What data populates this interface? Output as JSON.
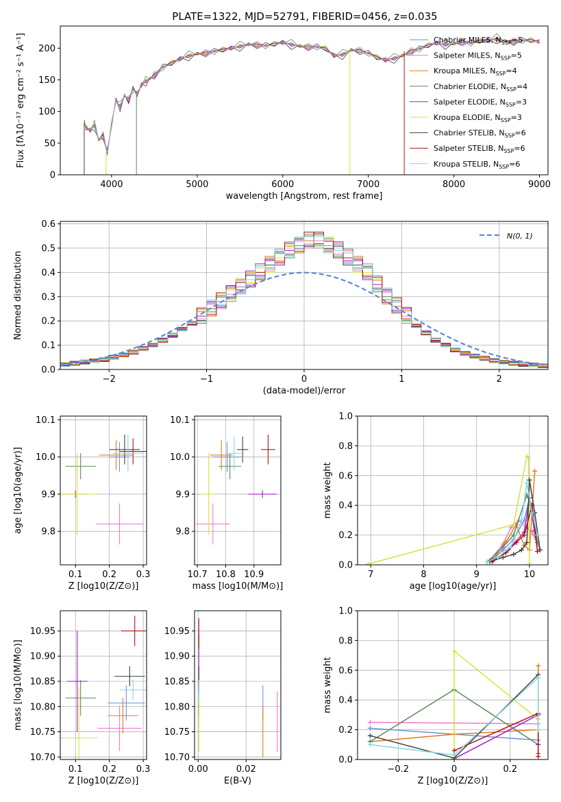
{
  "title": "PLATE=1322, MJD=52791, FIBERID=0456, z=0.035",
  "models": [
    {
      "name": "Chabrier MILES",
      "n": "5",
      "color": "#6f8fd8"
    },
    {
      "name": "Salpeter MILES",
      "n": "5",
      "color": "#f07ac8"
    },
    {
      "name": "Kroupa MILES",
      "n": "4",
      "color": "#e07b1a"
    },
    {
      "name": "Chabrier ELODIE",
      "n": "4",
      "color": "#5a8a5a"
    },
    {
      "name": "Salpeter ELODIE",
      "n": "3",
      "color": "#a020c8"
    },
    {
      "name": "Kroupa ELODIE",
      "n": "3",
      "color": "#d8e040"
    },
    {
      "name": "Chabrier STELIB",
      "n": "6",
      "color": "#404040"
    },
    {
      "name": "Salpeter STELIB",
      "n": "6",
      "color": "#b01010"
    },
    {
      "name": "Kroupa STELIB",
      "n": "6",
      "color": "#7fd8e0"
    }
  ],
  "nssp_label": "N",
  "nssp_sub": "SSP",
  "chart_data": [
    {
      "id": "spectrum",
      "type": "line",
      "xlabel": "wavelength [Angstrom, rest frame]",
      "ylabel": "Flux [fλ10⁻¹⁷ erg cm⁻² s⁻¹ A⁻¹]",
      "xlim": [
        3400,
        9100
      ],
      "ylim": [
        0,
        235
      ],
      "xticks": [
        4000,
        5000,
        6000,
        7000,
        8000,
        9000
      ],
      "yticks": [
        0,
        50,
        100,
        150,
        200
      ],
      "x": [
        3680,
        3700,
        3750,
        3800,
        3850,
        3900,
        3950,
        4000,
        4050,
        4100,
        4150,
        4200,
        4250,
        4300,
        4350,
        4400,
        4450,
        4500,
        4600,
        4700,
        4800,
        4900,
        5000,
        5100,
        5200,
        5300,
        5400,
        5500,
        5600,
        5700,
        5800,
        5900,
        6000,
        6100,
        6200,
        6300,
        6400,
        6500,
        6600,
        6700,
        6800,
        6900,
        7000,
        7100,
        7200,
        7300,
        7400,
        7500,
        7600,
        7700,
        7800,
        7900,
        8000,
        8100,
        8200,
        8300,
        8400,
        8500,
        8600,
        8700,
        8800,
        8900,
        9000
      ],
      "y": [
        82,
        75,
        70,
        78,
        55,
        62,
        35,
        80,
        118,
        108,
        125,
        118,
        135,
        128,
        142,
        148,
        152,
        157,
        170,
        177,
        183,
        188,
        191,
        192,
        195,
        198,
        200,
        203,
        206,
        205,
        204,
        207,
        209,
        206,
        203,
        202,
        202,
        200,
        188,
        190,
        197,
        196,
        192,
        186,
        181,
        184,
        188,
        195,
        199,
        205,
        208,
        206,
        207,
        210,
        208,
        212,
        212,
        215,
        211,
        210,
        212,
        213,
        210
      ],
      "dips": [
        [
          3680,
          0
        ],
        [
          3935,
          0
        ],
        [
          4290,
          0
        ],
        [
          6785,
          0
        ],
        [
          7420,
          0
        ]
      ]
    },
    {
      "id": "residuals",
      "type": "area",
      "xlabel": "(data-model)/error",
      "ylabel": "Normed distribution",
      "xlim": [
        -2.5,
        2.5
      ],
      "ylim": [
        0,
        0.61
      ],
      "xticks": [
        -2,
        -1,
        0,
        1,
        2
      ],
      "yticks": [
        0.0,
        0.1,
        0.2,
        0.3,
        0.4,
        0.5,
        0.6
      ],
      "grid": true,
      "legend": "N(0, 1)",
      "bins_from": -2.5,
      "bin_width": 0.1,
      "hist_peak": [
        0.02,
        0.025,
        0.03,
        0.035,
        0.04,
        0.05,
        0.06,
        0.07,
        0.085,
        0.1,
        0.12,
        0.14,
        0.165,
        0.19,
        0.22,
        0.25,
        0.28,
        0.31,
        0.34,
        0.37,
        0.4,
        0.43,
        0.46,
        0.49,
        0.51,
        0.53,
        0.53,
        0.51,
        0.49,
        0.46,
        0.43,
        0.4,
        0.35,
        0.3,
        0.26,
        0.22,
        0.18,
        0.15,
        0.12,
        0.1,
        0.08,
        0.065,
        0.055,
        0.045,
        0.035,
        0.03,
        0.025,
        0.02,
        0.018,
        0.015
      ]
    },
    {
      "id": "age-z",
      "type": "scatter",
      "xlabel": "Z [log10(Z/Z⊙)]",
      "ylabel": "age  [log10(age/yr)]",
      "xlim": [
        0.055,
        0.31
      ],
      "ylim": [
        9.71,
        10.11
      ],
      "xticks": [
        0.1,
        0.2,
        0.3
      ],
      "yticks": [
        9.8,
        9.9,
        10.0,
        10.1
      ],
      "grid": true,
      "points": [
        {
          "x": 0.23,
          "y": 10.0,
          "xe": 0.03,
          "ye": 0.04
        },
        {
          "x": 0.23,
          "y": 9.82,
          "xe": 0.07,
          "ye": 0.055
        },
        {
          "x": 0.22,
          "y": 10.005,
          "xe": 0.05,
          "ye": 0.04
        },
        {
          "x": 0.115,
          "y": 9.975,
          "xe": 0.045,
          "ye": 0.035
        },
        {
          "x": 0.1,
          "y": 9.9,
          "xe": 0.04,
          "ye": 0.01
        },
        {
          "x": 0.105,
          "y": 9.9,
          "xe": 0.06,
          "ye": 0.11
        },
        {
          "x": 0.245,
          "y": 10.02,
          "xe": 0.045,
          "ye": 0.04
        },
        {
          "x": 0.27,
          "y": 10.015,
          "xe": 0.04,
          "ye": 0.035
        },
        {
          "x": 0.255,
          "y": 10.01,
          "xe": 0.045,
          "ye": 0.05
        }
      ]
    },
    {
      "id": "age-mass",
      "type": "scatter",
      "xlabel": "mass [log10(M/M⊙)]",
      "ylabel": "",
      "xlim": [
        10.69,
        10.995
      ],
      "ylim": [
        9.71,
        10.11
      ],
      "xticks": [
        10.7,
        10.8,
        10.9
      ],
      "yticks": [
        9.8,
        9.9,
        10.0,
        10.1
      ],
      "grid": true,
      "points": [
        {
          "x": 10.805,
          "y": 10.0,
          "xe": 0.05,
          "ye": 0.04
        },
        {
          "x": 10.755,
          "y": 9.82,
          "xe": 0.06,
          "ye": 0.055
        },
        {
          "x": 10.785,
          "y": 10.005,
          "xe": 0.04,
          "ye": 0.04
        },
        {
          "x": 10.815,
          "y": 9.975,
          "xe": 0.04,
          "ye": 0.035
        },
        {
          "x": 10.93,
          "y": 9.9,
          "xe": 0.05,
          "ye": 0.01
        },
        {
          "x": 10.74,
          "y": 9.9,
          "xe": 0.02,
          "ye": 0.11
        },
        {
          "x": 10.86,
          "y": 10.02,
          "xe": 0.02,
          "ye": 0.035
        },
        {
          "x": 10.95,
          "y": 10.02,
          "xe": 0.025,
          "ye": 0.04
        },
        {
          "x": 10.83,
          "y": 10.01,
          "xe": 0.025,
          "ye": 0.045
        }
      ]
    },
    {
      "id": "weight-age",
      "type": "line",
      "xlabel": "age  [log10(age/yr)]",
      "ylabel": "mass weight",
      "xlim": [
        6.75,
        10.35
      ],
      "ylim": [
        0,
        1.0
      ],
      "xticks": [
        7,
        8,
        9,
        10
      ],
      "yticks": [
        0.0,
        0.2,
        0.4,
        0.6,
        0.8,
        1.0
      ],
      "grid": true,
      "series": [
        {
          "x": [
            9.2,
            9.35,
            9.5,
            9.7,
            9.9,
            10.0,
            10.1,
            10.2
          ],
          "y": [
            0.02,
            0.05,
            0.1,
            0.17,
            0.3,
            0.45,
            0.2,
            0.1
          ]
        },
        {
          "x": [
            9.25,
            9.5,
            9.65,
            9.8,
            9.95,
            10.05,
            10.2
          ],
          "y": [
            0.03,
            0.14,
            0.25,
            0.3,
            0.25,
            0.22,
            0.1
          ]
        },
        {
          "x": [
            9.3,
            9.55,
            9.75,
            9.9,
            10.0,
            10.1
          ],
          "y": [
            0.03,
            0.15,
            0.27,
            0.13,
            0.1,
            0.63
          ]
        },
        {
          "x": [
            9.2,
            9.5,
            9.7,
            9.95,
            10.05,
            10.15
          ],
          "y": [
            0.02,
            0.12,
            0.2,
            0.47,
            0.4,
            0.15
          ]
        },
        {
          "x": [
            9.3,
            9.6,
            9.9,
            10.0,
            10.1
          ],
          "y": [
            0.02,
            0.1,
            0.22,
            0.45,
            0.23
          ]
        },
        {
          "x": [
            6.95,
            9.7,
            9.95,
            9.98,
            10.0
          ],
          "y": [
            0.005,
            0.27,
            0.73,
            0.72,
            0.01
          ]
        },
        {
          "x": [
            9.25,
            9.5,
            9.7,
            9.85,
            9.95,
            10.0,
            10.1,
            10.2
          ],
          "y": [
            0.02,
            0.05,
            0.07,
            0.1,
            0.15,
            0.57,
            0.35,
            0.1
          ]
        },
        {
          "x": [
            9.3,
            9.55,
            9.75,
            9.9,
            10.05,
            10.15
          ],
          "y": [
            0.03,
            0.08,
            0.15,
            0.2,
            0.4,
            0.09
          ]
        },
        {
          "x": [
            9.2,
            9.4,
            9.65,
            9.85,
            9.95,
            10.05,
            10.15
          ],
          "y": [
            0.02,
            0.05,
            0.12,
            0.3,
            0.55,
            0.35,
            0.2
          ]
        }
      ]
    },
    {
      "id": "mass-z",
      "type": "scatter",
      "xlabel": "Z [log10(Z/Z⊙)]",
      "ylabel": "mass [log10(M/M⊙)]",
      "xlim": [
        0.055,
        0.31
      ],
      "ylim": [
        10.695,
        10.99
      ],
      "xticks": [
        0.1,
        0.2,
        0.3
      ],
      "yticks": [
        10.7,
        10.75,
        10.8,
        10.85,
        10.9,
        10.95
      ],
      "grid": true,
      "points": [
        {
          "x": 0.25,
          "y": 10.807,
          "xe": 0.055,
          "ye": 0.035
        },
        {
          "x": 0.23,
          "y": 10.757,
          "xe": 0.065,
          "ye": 0.045
        },
        {
          "x": 0.24,
          "y": 10.782,
          "xe": 0.045,
          "ye": 0.035
        },
        {
          "x": 0.115,
          "y": 10.817,
          "xe": 0.045,
          "ye": 0.035
        },
        {
          "x": 0.105,
          "y": 10.85,
          "xe": 0.03,
          "ye": 0.1
        },
        {
          "x": 0.11,
          "y": 10.738,
          "xe": 0.055,
          "ye": 0.1
        },
        {
          "x": 0.26,
          "y": 10.86,
          "xe": 0.045,
          "ye": 0.02
        },
        {
          "x": 0.275,
          "y": 10.95,
          "xe": 0.04,
          "ye": 0.03
        },
        {
          "x": 0.27,
          "y": 10.833,
          "xe": 0.04,
          "ye": 0.02
        }
      ]
    },
    {
      "id": "mass-ebv",
      "type": "scatter",
      "xlabel": "E(B-V)",
      "ylabel": "",
      "xlim": [
        -0.0015,
        0.0345
      ],
      "ylim": [
        10.695,
        10.99
      ],
      "xticks": [
        0.0,
        0.02
      ],
      "yticks": [
        10.7,
        10.75,
        10.8,
        10.85,
        10.9,
        10.95
      ],
      "grid": true,
      "points": [
        {
          "x": 0.027,
          "y": 10.807,
          "xe": 0.0,
          "ye": 0.035
        },
        {
          "x": 0.033,
          "y": 10.77,
          "xe": 0.0,
          "ye": 0.06
        },
        {
          "x": 0.027,
          "y": 10.75,
          "xe": 0.0,
          "ye": 0.05
        },
        {
          "x": 0.0003,
          "y": 10.817,
          "xe": 0.0,
          "ye": 0.035
        },
        {
          "x": 0.0003,
          "y": 10.885,
          "xe": 0.0,
          "ye": 0.06
        },
        {
          "x": 0.0003,
          "y": 10.77,
          "xe": 0.0,
          "ye": 0.06
        },
        {
          "x": 0.0003,
          "y": 10.86,
          "xe": 0.0,
          "ye": 0.02
        },
        {
          "x": 0.0003,
          "y": 10.945,
          "xe": 0.0,
          "ye": 0.03
        },
        {
          "x": 0.0003,
          "y": 10.833,
          "xe": 0.0,
          "ye": 0.02
        }
      ]
    },
    {
      "id": "weight-z",
      "type": "line",
      "xlabel": "Z [log10(Z/Z⊙)]",
      "ylabel": "mass weight",
      "xlim": [
        -0.345,
        0.335
      ],
      "ylim": [
        0,
        1.0
      ],
      "xticks": [
        -0.2,
        0.0,
        0.2
      ],
      "yticks": [
        0.0,
        0.2,
        0.4,
        0.6,
        0.8,
        1.0
      ],
      "grid": true,
      "series": [
        {
          "x": [
            -0.3,
            0.0,
            0.3
          ],
          "y": [
            0.21,
            0.17,
            0.13
          ]
        },
        {
          "x": [
            -0.3,
            0.0,
            0.3
          ],
          "y": [
            0.25,
            0.245,
            0.24
          ]
        },
        {
          "x": [
            -0.3,
            0.0,
            0.3,
            0.3
          ],
          "y": [
            0.12,
            0.17,
            0.2,
            0.63
          ]
        },
        {
          "x": [
            -0.3,
            0.0,
            0.3,
            0.3
          ],
          "y": [
            0.12,
            0.47,
            0.1,
            0.04
          ]
        },
        {
          "x": [
            0.0,
            0.3,
            0.3
          ],
          "y": [
            0.005,
            0.3,
            0.1
          ]
        },
        {
          "x": [
            0.0,
            0.0,
            0.3
          ],
          "y": [
            0.005,
            0.73,
            0.27
          ]
        },
        {
          "x": [
            -0.3,
            0.0,
            0.3
          ],
          "y": [
            0.16,
            0.01,
            0.57
          ]
        },
        {
          "x": [
            0.0,
            0.3,
            0.3
          ],
          "y": [
            0.06,
            0.31,
            0.02
          ]
        },
        {
          "x": [
            -0.3,
            0.0,
            0.3,
            0.3
          ],
          "y": [
            0.1,
            0.03,
            0.55,
            0.2
          ]
        }
      ]
    }
  ]
}
